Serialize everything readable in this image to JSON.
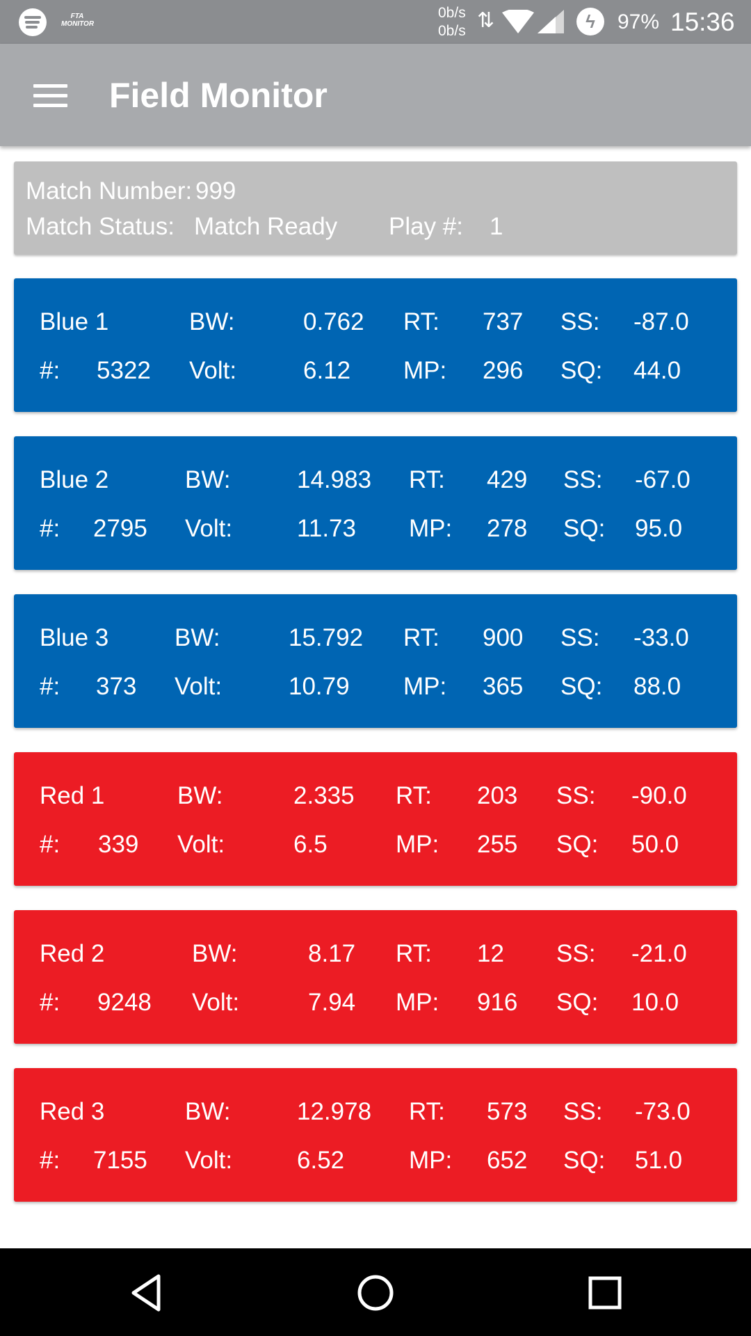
{
  "status_bar": {
    "app_badge": "FTA MONITOR",
    "rate_up": "0b/s",
    "rate_down": "0b/s",
    "battery": "97%",
    "time": "15:36",
    "icons": [
      "spotify-icon",
      "fta-monitor-icon",
      "data-transfer-icon",
      "wifi-icon",
      "cell-signal-icon",
      "battery-charging-icon"
    ]
  },
  "app_bar": {
    "title": "Field Monitor",
    "menu_icon": "hamburger-menu-icon"
  },
  "match": {
    "number_label": "Match Number:",
    "number": "999",
    "status_label": "Match Status:",
    "status": "Match Ready",
    "play_label": "Play #:",
    "play": "1"
  },
  "labels": {
    "team": "#:",
    "bw": "BW:",
    "volt": "Volt:",
    "rt": "RT:",
    "mp": "MP:",
    "ss": "SS:",
    "sq": "SQ:"
  },
  "stations": [
    {
      "name": "Blue 1",
      "team": "5322",
      "bw": "0.762",
      "volt": "6.12",
      "rt": "737",
      "mp": "296",
      "ss": "-87.0",
      "sq": "44.0",
      "alliance": "blue"
    },
    {
      "name": "Blue 2",
      "team": "2795",
      "bw": "14.983",
      "volt": "11.73",
      "rt": "429",
      "mp": "278",
      "ss": "-67.0",
      "sq": "95.0",
      "alliance": "blue"
    },
    {
      "name": "Blue 3",
      "team": "373",
      "bw": "15.792",
      "volt": "10.79",
      "rt": "900",
      "mp": "365",
      "ss": "-33.0",
      "sq": "88.0",
      "alliance": "blue"
    },
    {
      "name": "Red 1",
      "team": "339",
      "bw": "2.335",
      "volt": "6.5",
      "rt": "203",
      "mp": "255",
      "ss": "-90.0",
      "sq": "50.0",
      "alliance": "red"
    },
    {
      "name": "Red 2",
      "team": "9248",
      "bw": "8.17",
      "volt": "7.94",
      "rt": "12",
      "mp": "916",
      "ss": "-21.0",
      "sq": "10.0",
      "alliance": "red"
    },
    {
      "name": "Red 3",
      "team": "7155",
      "bw": "12.978",
      "volt": "6.52",
      "rt": "573",
      "mp": "652",
      "ss": "-73.0",
      "sq": "51.0",
      "alliance": "red"
    }
  ],
  "colors": {
    "blue_alliance": "#0065b3",
    "red_alliance": "#ec1c24",
    "app_bar": "#a8aaad",
    "status_bar": "#8b8d90",
    "match_panel": "#bfbfbf"
  },
  "nav_bar": {
    "icons": [
      "back-icon",
      "home-icon",
      "recents-icon"
    ]
  }
}
